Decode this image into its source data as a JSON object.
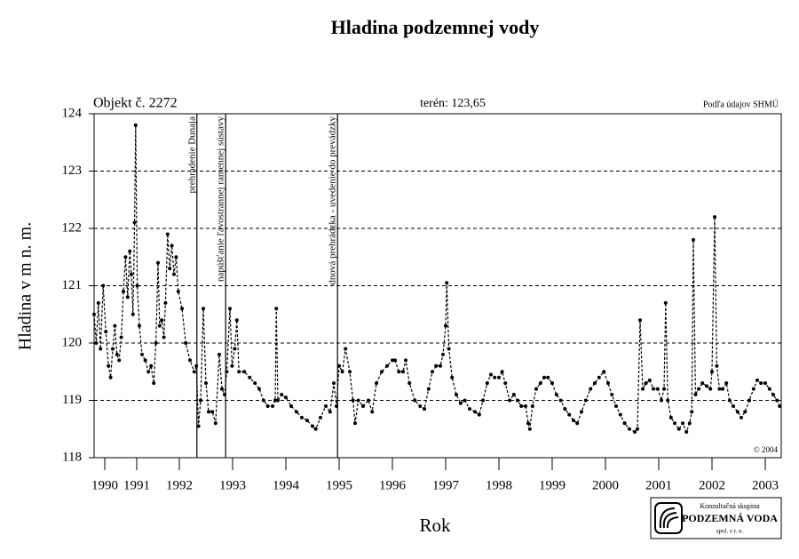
{
  "chart_data": {
    "type": "line",
    "title": "Hladina podzemnej vody",
    "annotations": [
      "Objekt č. 2272",
      "terén: 123,65",
      "Podľa údajov SHMÚ",
      "© 2004"
    ],
    "x_label": "Rok",
    "y_label": "Hladina v m n. m.",
    "logo": [
      "Konzultačná skupina",
      "PODZEMNÁ VODA",
      "spol. s r. o."
    ],
    "events": [
      {
        "x": 1992.33,
        "label": "prehradenie Dunaja"
      },
      {
        "x": 1992.87,
        "label": "napúšťanie ľavostrannej ramennej sústavy"
      },
      {
        "x": 1994.97,
        "label": "dnová prehrádzka - uvedenie do prevádzky"
      }
    ],
    "color": "#000000",
    "grid": true,
    "xlim": [
      1990.4,
      2003.3
    ],
    "ylim": [
      118,
      124
    ],
    "yticks": [
      118,
      119,
      120,
      121,
      122,
      123,
      124
    ],
    "xticks": [
      {
        "value": 1990.6,
        "label": "1990"
      },
      {
        "value": 1991.2,
        "label": "1991"
      },
      1992,
      1993,
      1994,
      1995,
      1996,
      1997,
      1998,
      1999,
      2000,
      2001,
      2002,
      2003
    ],
    "x": [
      1990.4,
      1990.44,
      1990.48,
      1990.52,
      1990.57,
      1990.62,
      1990.67,
      1990.71,
      1990.75,
      1990.79,
      1990.83,
      1990.87,
      1990.91,
      1990.95,
      1990.99,
      1991.03,
      1991.07,
      1991.1,
      1991.13,
      1991.16,
      1991.18,
      1991.21,
      1991.25,
      1991.3,
      1991.36,
      1991.42,
      1991.47,
      1991.52,
      1991.56,
      1991.6,
      1991.63,
      1991.67,
      1991.71,
      1991.74,
      1991.78,
      1991.82,
      1991.86,
      1991.9,
      1991.94,
      1991.98,
      1992.05,
      1992.12,
      1992.2,
      1992.28,
      1992.32,
      1992.36,
      1992.4,
      1992.45,
      1992.5,
      1992.55,
      1992.62,
      1992.68,
      1992.75,
      1992.8,
      1992.85,
      1992.89,
      1992.95,
      1992.99,
      1993.04,
      1993.08,
      1993.12,
      1993.22,
      1993.32,
      1993.42,
      1993.5,
      1993.58,
      1993.66,
      1993.75,
      1993.8,
      1993.82,
      1993.85,
      1993.92,
      1994.0,
      1994.1,
      1994.2,
      1994.3,
      1994.4,
      1994.5,
      1994.56,
      1994.65,
      1994.75,
      1994.83,
      1994.9,
      1994.95,
      1995.0,
      1995.06,
      1995.12,
      1995.2,
      1995.26,
      1995.3,
      1995.36,
      1995.45,
      1995.55,
      1995.62,
      1995.7,
      1995.8,
      1995.9,
      1996.0,
      1996.05,
      1996.12,
      1996.2,
      1996.25,
      1996.32,
      1996.42,
      1996.52,
      1996.6,
      1996.68,
      1996.75,
      1996.82,
      1996.9,
      1996.95,
      1997.0,
      1997.02,
      1997.06,
      1997.12,
      1997.2,
      1997.28,
      1997.36,
      1997.45,
      1997.55,
      1997.63,
      1997.7,
      1997.78,
      1997.85,
      1997.92,
      1998.0,
      1998.06,
      1998.12,
      1998.2,
      1998.28,
      1998.35,
      1998.42,
      1998.5,
      1998.55,
      1998.58,
      1998.63,
      1998.7,
      1998.78,
      1998.85,
      1998.92,
      1999.0,
      1999.08,
      1999.16,
      1999.24,
      1999.32,
      1999.4,
      1999.47,
      1999.55,
      1999.63,
      1999.72,
      1999.8,
      1999.88,
      1999.97,
      2000.05,
      2000.12,
      2000.2,
      2000.28,
      2000.36,
      2000.45,
      2000.55,
      2000.6,
      2000.65,
      2000.7,
      2000.76,
      2000.83,
      2000.9,
      2000.98,
      2001.05,
      2001.1,
      2001.13,
      2001.17,
      2001.23,
      2001.3,
      2001.38,
      2001.45,
      2001.52,
      2001.58,
      2001.62,
      2001.65,
      2001.69,
      2001.75,
      2001.82,
      2001.9,
      2001.97,
      2002.0,
      2002.05,
      2002.09,
      2002.14,
      2002.2,
      2002.27,
      2002.33,
      2002.4,
      2002.48,
      2002.55,
      2002.62,
      2002.7,
      2002.78,
      2002.85,
      2002.92,
      2003.0,
      2003.08,
      2003.15,
      2003.22,
      2003.27
    ],
    "values": [
      120.5,
      120.0,
      120.7,
      119.9,
      121.0,
      120.2,
      119.6,
      119.4,
      119.9,
      120.3,
      119.8,
      119.7,
      120.1,
      120.9,
      121.5,
      120.8,
      121.6,
      121.2,
      120.5,
      122.1,
      123.8,
      121.0,
      120.3,
      119.8,
      119.7,
      119.5,
      119.6,
      119.3,
      120.0,
      121.4,
      120.3,
      120.4,
      120.1,
      120.7,
      121.9,
      121.3,
      121.7,
      121.2,
      121.5,
      120.9,
      120.6,
      120.0,
      119.7,
      119.5,
      119.6,
      118.55,
      119.0,
      120.6,
      119.3,
      118.8,
      118.8,
      118.6,
      119.8,
      119.2,
      119.1,
      119.5,
      120.6,
      119.6,
      119.9,
      120.4,
      119.5,
      119.5,
      119.4,
      119.3,
      119.2,
      119.0,
      118.9,
      118.9,
      119.0,
      120.6,
      119.0,
      119.1,
      119.05,
      118.9,
      118.8,
      118.7,
      118.65,
      118.55,
      118.5,
      118.7,
      118.9,
      118.8,
      119.3,
      118.9,
      119.6,
      119.5,
      119.9,
      119.5,
      119.0,
      118.6,
      119.0,
      118.9,
      119.0,
      118.8,
      119.3,
      119.5,
      119.6,
      119.7,
      119.7,
      119.5,
      119.5,
      119.7,
      119.3,
      119.0,
      118.9,
      118.85,
      119.2,
      119.5,
      119.6,
      119.6,
      119.8,
      120.3,
      121.05,
      119.9,
      119.4,
      119.1,
      118.95,
      119.0,
      118.85,
      118.8,
      118.75,
      119.0,
      119.3,
      119.45,
      119.4,
      119.4,
      119.5,
      119.3,
      119.0,
      119.1,
      119.0,
      118.9,
      118.9,
      118.6,
      118.5,
      118.9,
      119.2,
      119.3,
      119.4,
      119.4,
      119.3,
      119.1,
      119.0,
      118.85,
      118.75,
      118.65,
      118.6,
      118.8,
      119.0,
      119.2,
      119.3,
      119.4,
      119.5,
      119.3,
      119.1,
      118.9,
      118.75,
      118.6,
      118.5,
      118.45,
      118.5,
      120.4,
      119.2,
      119.3,
      119.35,
      119.2,
      119.2,
      119.0,
      119.2,
      120.7,
      119.0,
      118.7,
      118.6,
      118.5,
      118.6,
      118.45,
      118.6,
      118.8,
      121.8,
      119.1,
      119.2,
      119.3,
      119.25,
      119.2,
      119.5,
      122.2,
      119.6,
      119.2,
      119.2,
      119.3,
      119.0,
      118.9,
      118.8,
      118.7,
      118.8,
      119.0,
      119.2,
      119.35,
      119.3,
      119.3,
      119.2,
      119.1,
      119.0,
      118.9
    ]
  }
}
